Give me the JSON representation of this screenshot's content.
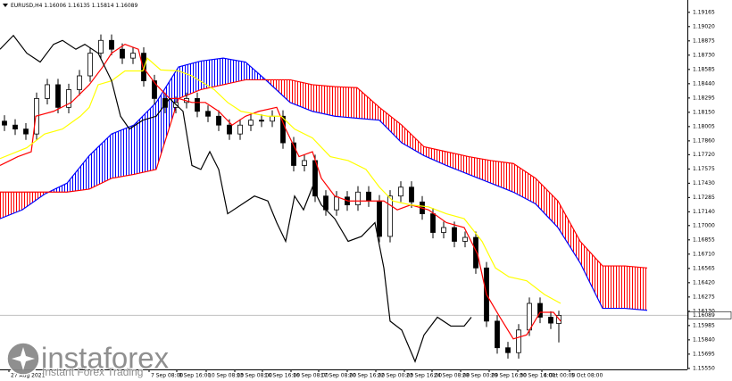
{
  "chart_data": {
    "type": "candlestick",
    "title": "EURUSD,H4  1.16006 1.16135 1.15814 1.16089",
    "last_price": 1.16089,
    "xlim": [
      0,
      154
    ],
    "ylim": [
      1.1554,
      1.1929
    ],
    "yticks": [
      1.19165,
      {
        "value": 1.1902,
        "label": "1.19020"
      },
      1.18875,
      {
        "value": 1.1873,
        "label": "1.18730"
      },
      1.18585,
      {
        "value": 1.1844,
        "label": "1.18440"
      },
      1.18295,
      {
        "value": 1.1815,
        "label": "1.18150"
      },
      1.18005,
      {
        "value": 1.1786,
        "label": "1.17860"
      },
      {
        "value": 1.1772,
        "label": "1.17720"
      },
      1.17575,
      {
        "value": 1.1743,
        "label": "1.17430"
      },
      1.17285,
      {
        "value": 1.1714,
        "label": "1.17140"
      },
      {
        "value": 1.17,
        "label": "1.17000"
      },
      1.16855,
      {
        "value": 1.1671,
        "label": "1.16710"
      },
      1.16565,
      {
        "value": 1.1642,
        "label": "1.16420"
      },
      1.16275,
      {
        "value": 1.1613,
        "label": "1.16130"
      },
      1.15985,
      {
        "value": 1.1584,
        "label": "1.15840"
      },
      1.15695,
      {
        "value": 1.1555,
        "label": "1.15550"
      }
    ],
    "xticks": [
      {
        "value": 2,
        "label": "27 Aug 2021"
      },
      {
        "value": 33.4,
        "label": "7 Sep 08:00"
      },
      {
        "value": 39.6,
        "label": "8 Sep 16:00"
      },
      {
        "value": 46.2,
        "label": "10 Sep 08:00"
      },
      {
        "value": 52.6,
        "label": "13 Sep 08:00"
      },
      {
        "value": 58.8,
        "label": "14 Sep 16:00"
      },
      {
        "value": 65.2,
        "label": "16 Sep 08:00"
      },
      {
        "value": 71.4,
        "label": "17 Sep 08:00"
      },
      {
        "value": 77.8,
        "label": "20 Sep 16:00"
      },
      {
        "value": 84.2,
        "label": "22 Sep 00:00"
      },
      {
        "value": 90.6,
        "label": "23 Sep 16:00"
      },
      {
        "value": 96.8,
        "label": "24 Sep 08:00"
      },
      {
        "value": 103.2,
        "label": "28 Sep 00:00"
      },
      {
        "value": 109.6,
        "label": "29 Sep 16:00"
      },
      {
        "value": 116,
        "label": "30 Sep 16:00"
      },
      {
        "value": 121.4,
        "label": "4 Oct 00:00"
      },
      {
        "value": 127.6,
        "label": "5 Oct 08:00"
      }
    ],
    "x": [
      1,
      3.4,
      5.8,
      8.2,
      10.6,
      13,
      15.4,
      17.8,
      20.2,
      22.6,
      25,
      27.4,
      29.8,
      32.2,
      34.6,
      37,
      39.4,
      41.8,
      44.2,
      46.6,
      49,
      51.4,
      53.8,
      56.2,
      58.6,
      61,
      63.4,
      65.8,
      68.2,
      70.6,
      73,
      75.4,
      77.8,
      80.2,
      82.6,
      85,
      87.4,
      89.8,
      92.2,
      94.6,
      97,
      99.4,
      101.8,
      104.2,
      106.6,
      109,
      111.4,
      113.8,
      116.2,
      118.6,
      121,
      123.4,
      125.2
    ],
    "open": [
      1.1806,
      1.1802,
      1.1798,
      1.1793,
      1.1829,
      1.1843,
      1.182,
      1.1838,
      1.1852,
      1.1875,
      1.1888,
      1.1879,
      1.187,
      1.1875,
      1.1847,
      1.1829,
      1.182,
      1.1825,
      1.1829,
      1.1816,
      1.1811,
      1.1802,
      1.1793,
      1.1802,
      1.1807,
      1.1806,
      1.1811,
      1.1784,
      1.1761,
      1.1766,
      1.173,
      1.1716,
      1.1729,
      1.1721,
      1.1734,
      1.1725,
      1.1689,
      1.173,
      1.1739,
      1.1724,
      1.1712,
      1.1693,
      1.1698,
      1.1684,
      1.1688,
      1.1657,
      1.1603,
      1.1576,
      1.1571,
      1.1594,
      1.1621,
      1.1607,
      1.16006
    ],
    "high": [
      1.1812,
      1.1808,
      1.1804,
      1.1835,
      1.1849,
      1.1849,
      1.1844,
      1.1858,
      1.1881,
      1.1894,
      1.1894,
      1.1885,
      1.1881,
      1.1881,
      1.1853,
      1.1835,
      1.1831,
      1.1835,
      1.1835,
      1.1822,
      1.1817,
      1.1808,
      1.1808,
      1.1813,
      1.1813,
      1.1817,
      1.1817,
      1.179,
      1.1772,
      1.1772,
      1.1736,
      1.1735,
      1.1735,
      1.174,
      1.174,
      1.1731,
      1.1736,
      1.1745,
      1.1745,
      1.173,
      1.1718,
      1.1704,
      1.1704,
      1.1694,
      1.1694,
      1.1663,
      1.1609,
      1.1582,
      1.16,
      1.1627,
      1.1627,
      1.1613,
      1.16135
    ],
    "low": [
      1.1796,
      1.1792,
      1.1787,
      1.1787,
      1.1823,
      1.1814,
      1.1814,
      1.1832,
      1.1846,
      1.1869,
      1.1873,
      1.1864,
      1.1864,
      1.1841,
      1.1823,
      1.1814,
      1.1814,
      1.1819,
      1.181,
      1.1805,
      1.1796,
      1.1787,
      1.1787,
      1.1796,
      1.18,
      1.18,
      1.1778,
      1.1755,
      1.1755,
      1.1724,
      1.171,
      1.171,
      1.1715,
      1.1715,
      1.1719,
      1.1683,
      1.1683,
      1.1724,
      1.1718,
      1.1706,
      1.1687,
      1.1687,
      1.1678,
      1.1678,
      1.1651,
      1.1597,
      1.157,
      1.1565,
      1.1565,
      1.1588,
      1.1601,
      1.1595,
      1.15814
    ],
    "close": [
      1.1802,
      1.1798,
      1.1793,
      1.1829,
      1.1843,
      1.182,
      1.1838,
      1.1852,
      1.1875,
      1.1888,
      1.1879,
      1.187,
      1.1875,
      1.1847,
      1.1829,
      1.182,
      1.1825,
      1.1829,
      1.1816,
      1.1811,
      1.1802,
      1.1793,
      1.1802,
      1.1807,
      1.1806,
      1.1811,
      1.1784,
      1.1761,
      1.1766,
      1.173,
      1.1716,
      1.1729,
      1.1721,
      1.1734,
      1.1725,
      1.1689,
      1.173,
      1.1739,
      1.1724,
      1.1712,
      1.1693,
      1.1698,
      1.1684,
      1.1688,
      1.1657,
      1.1603,
      1.1576,
      1.1571,
      1.1594,
      1.1621,
      1.1607,
      1.1601,
      1.16089
    ],
    "lines": [
      {
        "color": "#ff0000",
        "x": [
          0,
          4,
          7,
          8,
          12,
          16,
          20,
          23,
          25,
          28,
          31,
          32,
          35,
          38,
          40,
          43,
          46,
          49,
          52,
          55,
          58,
          62,
          64,
          67,
          70,
          72,
          75,
          78,
          82,
          86,
          89,
          92,
          96,
          100,
          104,
          107,
          109,
          112,
          115,
          118,
          121,
          124,
          125.6
        ],
        "values": [
          1.1761,
          1.177,
          1.1775,
          1.1811,
          1.1816,
          1.1825,
          1.1843,
          1.1861,
          1.1875,
          1.1884,
          1.1879,
          1.1861,
          1.1843,
          1.1829,
          1.1829,
          1.1825,
          1.1825,
          1.1816,
          1.1802,
          1.1811,
          1.1816,
          1.182,
          1.1798,
          1.177,
          1.1775,
          1.1748,
          1.173,
          1.1725,
          1.1725,
          1.1725,
          1.1716,
          1.1721,
          1.1716,
          1.1703,
          1.1698,
          1.1671,
          1.163,
          1.1607,
          1.1585,
          1.1589,
          1.1612,
          1.1612,
          1.1603
        ]
      },
      {
        "color": "#ffff00",
        "x": [
          0,
          6,
          10,
          14,
          18,
          20,
          22,
          25,
          28,
          32,
          33,
          36,
          40,
          43,
          48,
          51,
          54,
          60,
          63,
          66,
          70,
          74,
          78,
          82,
          85,
          88,
          92,
          96,
          100,
          104,
          108,
          111,
          114,
          118,
          122,
          125.6
        ],
        "values": [
          1.1768,
          1.1779,
          1.1793,
          1.1798,
          1.1811,
          1.182,
          1.1843,
          1.1847,
          1.1857,
          1.1857,
          1.187,
          1.1858,
          1.1857,
          1.1852,
          1.1838,
          1.1825,
          1.1816,
          1.1811,
          1.1811,
          1.1798,
          1.1789,
          1.177,
          1.1766,
          1.1757,
          1.1739,
          1.1725,
          1.1721,
          1.1719,
          1.1712,
          1.1707,
          1.1684,
          1.1657,
          1.1648,
          1.1644,
          1.163,
          1.1621
        ]
      },
      {
        "color": "#000000",
        "x": [
          0,
          3,
          6,
          9,
          12,
          14,
          17,
          19,
          22,
          25,
          27,
          29,
          32,
          35,
          38,
          41,
          43,
          45,
          47,
          49,
          51,
          54,
          57,
          60,
          62,
          64,
          66,
          68,
          70,
          72,
          75,
          78,
          81,
          84,
          86,
          87.4,
          90,
          93,
          95,
          98,
          101,
          104,
          105.6
        ],
        "values": [
          1.1879,
          1.1893,
          1.1875,
          1.1866,
          1.1884,
          1.1888,
          1.1879,
          1.1884,
          1.1875,
          1.1847,
          1.1811,
          1.1798,
          1.1807,
          1.1811,
          1.1829,
          1.1816,
          1.1761,
          1.1757,
          1.1775,
          1.1757,
          1.1712,
          1.1721,
          1.173,
          1.1725,
          1.1703,
          1.1684,
          1.173,
          1.1716,
          1.1739,
          1.1721,
          1.1707,
          1.1684,
          1.1689,
          1.1703,
          1.1657,
          1.1603,
          1.1594,
          1.1562,
          1.1589,
          1.1607,
          1.1598,
          1.1598,
          1.1607
        ]
      }
    ],
    "cloud": {
      "x": [
        0,
        5,
        10,
        15,
        20,
        25,
        30,
        35,
        40,
        45,
        50,
        55,
        60,
        65,
        70,
        75,
        80,
        85,
        90,
        95,
        100,
        105,
        110,
        115,
        120,
        125,
        130,
        135,
        140,
        145
      ],
      "span_a": [
        1.1707,
        1.1716,
        1.1732,
        1.1743,
        1.1771,
        1.1793,
        1.1802,
        1.1825,
        1.1861,
        1.1867,
        1.187,
        1.1866,
        1.1846,
        1.1825,
        1.1816,
        1.1811,
        1.1809,
        1.1807,
        1.1784,
        1.1771,
        1.1761,
        1.1752,
        1.1743,
        1.1734,
        1.1722,
        1.1698,
        1.1662,
        1.1616,
        1.1616,
        1.1614
      ],
      "span_b": [
        1.1734,
        1.1734,
        1.1734,
        1.1734,
        1.1737,
        1.1748,
        1.1752,
        1.1757,
        1.1829,
        1.1838,
        1.1843,
        1.1848,
        1.1848,
        1.1848,
        1.1843,
        1.1841,
        1.184,
        1.182,
        1.1802,
        1.178,
        1.1775,
        1.177,
        1.1766,
        1.1763,
        1.1748,
        1.1725,
        1.1684,
        1.1659,
        1.1659,
        1.1657
      ],
      "up_color": "#0000ff",
      "down_color": "#ff0000"
    },
    "watermark": {
      "brand": "instaforex",
      "tagline": "Instant Forex Trading"
    }
  }
}
